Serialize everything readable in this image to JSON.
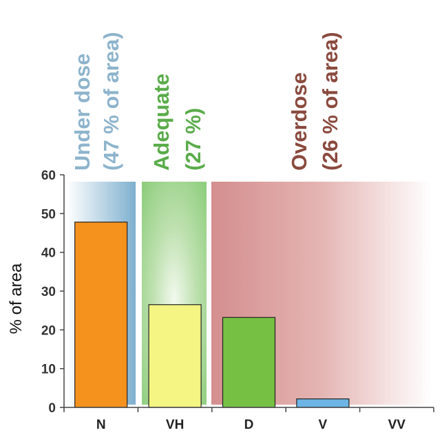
{
  "colors": {
    "under": "#8db4cc",
    "adequate": "#5aac4a",
    "overdose": "#8a4a3e"
  },
  "zones": [
    {
      "key": "under",
      "line1": "Under dose",
      "line2": "(47 % of area)"
    },
    {
      "key": "adequate",
      "line1": "Adequate",
      "line2": "(27 %)"
    },
    {
      "key": "overdose",
      "line1": "Overdose",
      "line2": "(26 % of area)"
    }
  ],
  "chart_data": {
    "type": "bar",
    "ylabel": "% of area",
    "xlabel": "",
    "ylim": [
      0,
      60
    ],
    "yticks": [
      0,
      10,
      20,
      30,
      40,
      50,
      60
    ],
    "categories": [
      "N",
      "VH",
      "D",
      "V",
      "VV"
    ],
    "values": [
      47.8,
      26.5,
      23.2,
      2.2,
      0
    ],
    "bar_colors": [
      "#f5921e",
      "#f4f582",
      "#76c043",
      "#6cb4e4",
      "#ffffff"
    ],
    "grid": false,
    "legend": "none"
  }
}
